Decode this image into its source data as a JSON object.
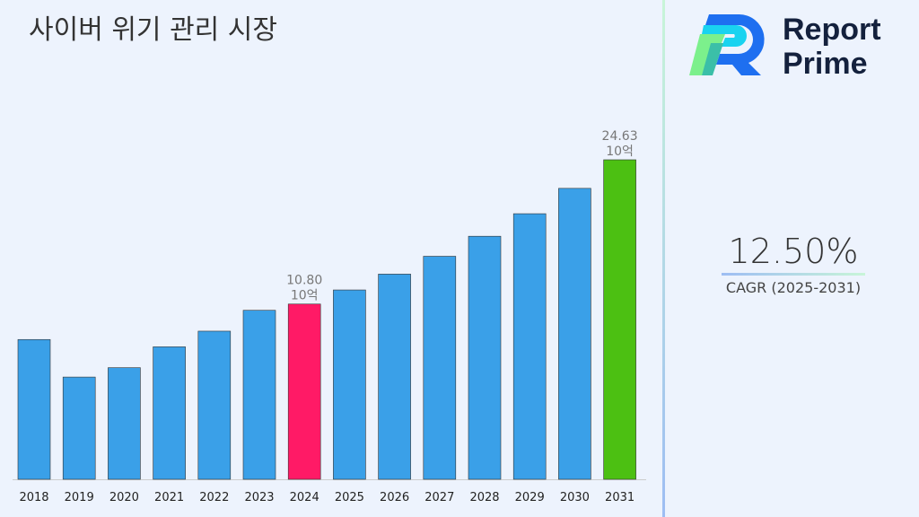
{
  "chart_data": {
    "type": "bar",
    "title": "사이버 위기 관리 시장",
    "categories": [
      "2018",
      "2019",
      "2020",
      "2021",
      "2022",
      "2023",
      "2024",
      "2025",
      "2026",
      "2027",
      "2028",
      "2029",
      "2030",
      "2031"
    ],
    "values": [
      7.4,
      3.8,
      4.7,
      6.7,
      8.2,
      10.2,
      10.8,
      12.15,
      13.67,
      15.38,
      17.3,
      19.46,
      21.89,
      24.63
    ],
    "colors": [
      "#3aa0e8",
      "#3aa0e8",
      "#3aa0e8",
      "#3aa0e8",
      "#3aa0e8",
      "#3aa0e8",
      "#ff1a66",
      "#3aa0e8",
      "#3aa0e8",
      "#3aa0e8",
      "#3aa0e8",
      "#3aa0e8",
      "#3aa0e8",
      "#4cc012"
    ],
    "data_labels": [
      {
        "index": 6,
        "value": "10.80",
        "unit": "10억"
      },
      {
        "index": 13,
        "value": "24.63",
        "unit": "10억"
      }
    ],
    "grid": false,
    "ylim": [
      -6,
      24.63
    ]
  },
  "brand": {
    "line1": "Report",
    "line2": "Prime"
  },
  "cagr": {
    "value": "12.50%",
    "label": "CAGR (2025-2031)"
  }
}
